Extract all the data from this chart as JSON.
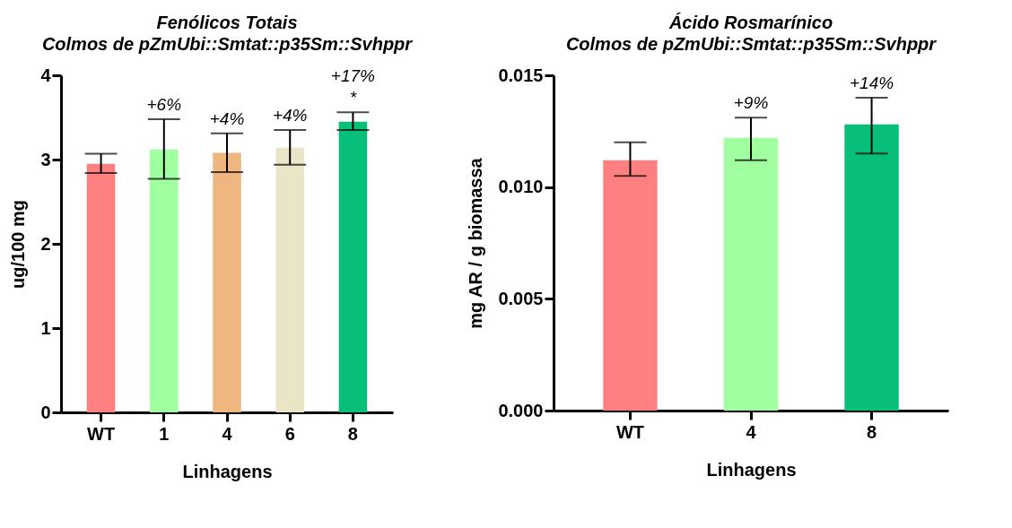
{
  "chart_data": [
    {
      "type": "bar",
      "title": "Fenólicos Totais",
      "subtitle": "Colmos de pZmUbi::Smtat::p35Sm::Svhppr",
      "xlabel": "Linhagens",
      "ylabel": "ug/100 mg",
      "categories": [
        "WT",
        "1",
        "4",
        "6",
        "8"
      ],
      "values": [
        2.95,
        3.12,
        3.08,
        3.14,
        3.45
      ],
      "colors": [
        "#ff8080",
        "#a0ff9e",
        "#f0b67f",
        "#ebe5c8",
        "#07bf78"
      ],
      "errors": [
        [
          2.84,
          3.07
        ],
        [
          2.77,
          3.48
        ],
        [
          2.85,
          3.31
        ],
        [
          2.94,
          3.35
        ],
        [
          3.35,
          3.56
        ]
      ],
      "ylim": [
        0,
        4
      ],
      "yticks": [
        0,
        1,
        2,
        3,
        4
      ],
      "grid": false,
      "annotations": [
        {
          "text": "+6%",
          "x": "1",
          "y": 3.48
        },
        {
          "text": "+4%",
          "x": "4",
          "y": 3.31
        },
        {
          "text": "+4%",
          "x": "6",
          "y": 3.35
        },
        {
          "text": "+17%",
          "x": "8",
          "y": 3.56
        },
        {
          "text": "*",
          "x": "8",
          "y": 3.56
        }
      ]
    },
    {
      "type": "bar",
      "title": "Ácido Rosmarínico",
      "subtitle": "Colmos de pZmUbi::Smtat::p35Sm::Svhppr",
      "xlabel": "Linhagens",
      "ylabel": "mg AR / g biomassa",
      "categories": [
        "WT",
        "4",
        "8"
      ],
      "values": [
        0.0112,
        0.0122,
        0.0128
      ],
      "colors": [
        "#ff8080",
        "#a0ff9e",
        "#07bf78"
      ],
      "errors": [
        [
          0.0105,
          0.012
        ],
        [
          0.0112,
          0.0131
        ],
        [
          0.0115,
          0.014
        ]
      ],
      "ylim": [
        0,
        0.015
      ],
      "yticks": [
        {
          "value": 0,
          "label": "0.000"
        },
        {
          "value": 0.005,
          "label": "0.005"
        },
        {
          "value": 0.01,
          "label": "0.010"
        },
        {
          "value": 0.015,
          "label": "0.015"
        }
      ],
      "grid": false,
      "annotations": [
        {
          "text": "+9%",
          "x": "4",
          "y": 0.0131
        },
        {
          "text": "+14%",
          "x": "8",
          "y": 0.014
        }
      ]
    }
  ]
}
